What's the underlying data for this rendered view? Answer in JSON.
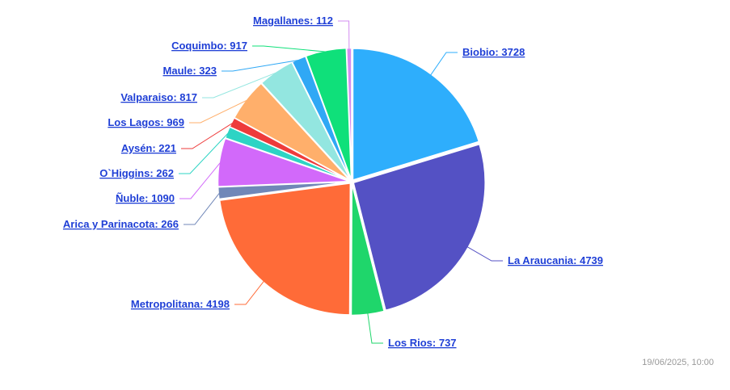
{
  "chart_data": {
    "type": "pie",
    "title": "",
    "slices": [
      {
        "label": "Biobio",
        "value": 3728,
        "color": "#2eaefc",
        "text": "Biobio: 3728"
      },
      {
        "label": "La Araucania",
        "value": 4739,
        "color": "#5451c4",
        "text": "La Araucania: 4739"
      },
      {
        "label": "Los Rios",
        "value": 737,
        "color": "#1fd66b",
        "text": "Los Rios: 737"
      },
      {
        "label": "Metropolitana",
        "value": 4198,
        "color": "#ff6b38",
        "text": "Metropolitana: 4198"
      },
      {
        "label": "Arica y Parinacota",
        "value": 266,
        "color": "#7087b8",
        "text": "Arica y Parinacota: 266"
      },
      {
        "label": "Ñuble",
        "value": 1090,
        "color": "#d269fa",
        "text": "Ñuble: 1090"
      },
      {
        "label": "O`Higgins",
        "value": 262,
        "color": "#2dd4c4",
        "text": "O`Higgins: 262"
      },
      {
        "label": "Aysén",
        "value": 221,
        "color": "#ee3b3b",
        "text": "Aysén: 221"
      },
      {
        "label": "Los Lagos",
        "value": 969,
        "color": "#ffaf6b",
        "text": "Los Lagos: 969"
      },
      {
        "label": "Valparaiso",
        "value": 817,
        "color": "#93e6e0",
        "text": "Valparaiso: 817"
      },
      {
        "label": "Maule",
        "value": 323,
        "color": "#30a8f5",
        "text": "Maule: 323"
      },
      {
        "label": "Coquimbo",
        "value": 917,
        "color": "#0fe07a",
        "text": "Coquimbo: 917"
      },
      {
        "label": "Magallanes",
        "value": 112,
        "color": "#d38cf0",
        "text": "Magallanes: 112"
      }
    ]
  },
  "footer": {
    "timestamp": "19/06/2025, 10:00"
  }
}
